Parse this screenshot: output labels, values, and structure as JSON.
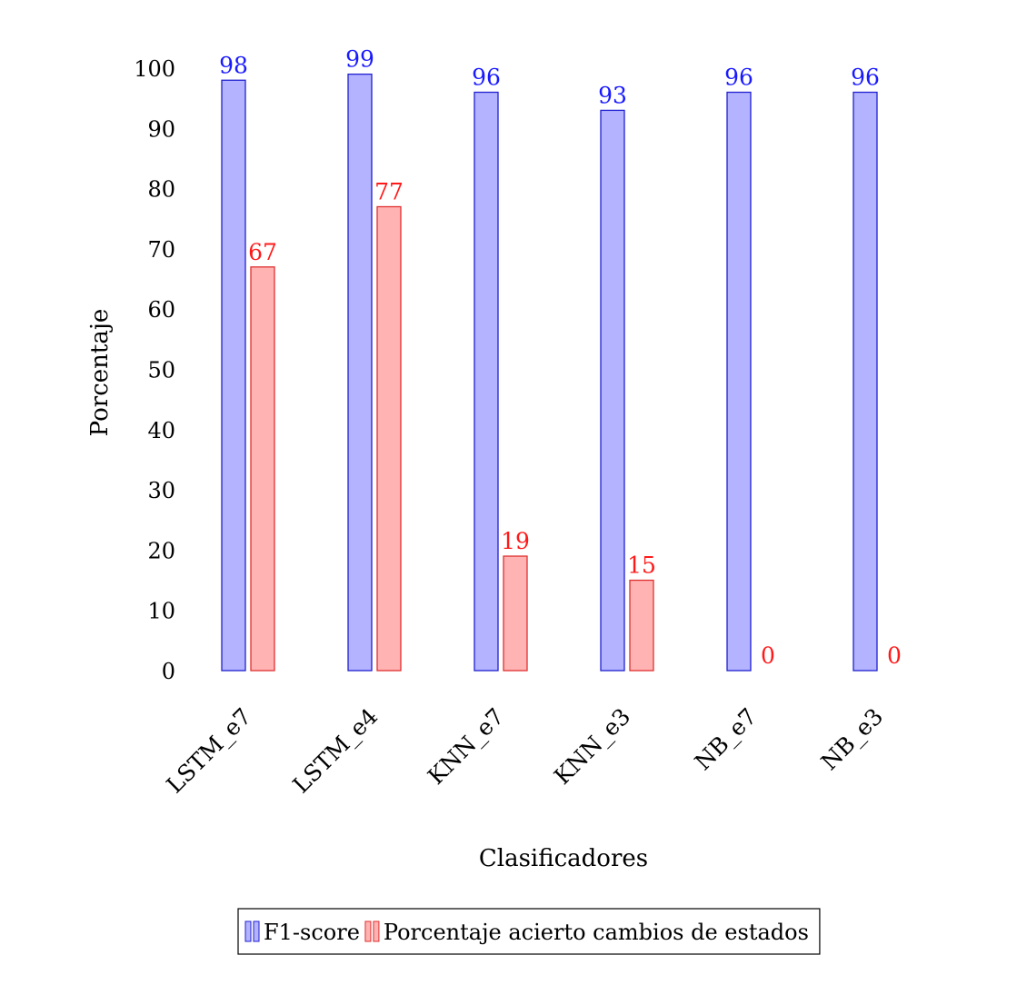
{
  "chart_data": {
    "type": "bar",
    "categories": [
      "LSTM_e7",
      "LSTM_e4",
      "KNN_e7",
      "KNN_e3",
      "NB_e7",
      "NB_e3"
    ],
    "series": [
      {
        "name": "F1-score",
        "values": [
          98,
          99,
          96,
          93,
          96,
          96
        ],
        "fill": "#b3b3ff",
        "stroke": "#2020d0",
        "label_color": "#1a1aff"
      },
      {
        "name": "Porcentaje acierto cambios de estados",
        "values": [
          67,
          77,
          19,
          15,
          0,
          0
        ],
        "fill": "#ffb3b3",
        "stroke": "#e03030",
        "label_color": "#ff1a1a"
      }
    ],
    "xlabel": "Clasificadores",
    "ylabel": "Porcentaje",
    "ylim": [
      0,
      100
    ],
    "yticks": [
      0,
      10,
      20,
      30,
      40,
      50,
      60,
      70,
      80,
      90,
      100
    ],
    "grid": false,
    "legend_position": "bottom-center"
  }
}
